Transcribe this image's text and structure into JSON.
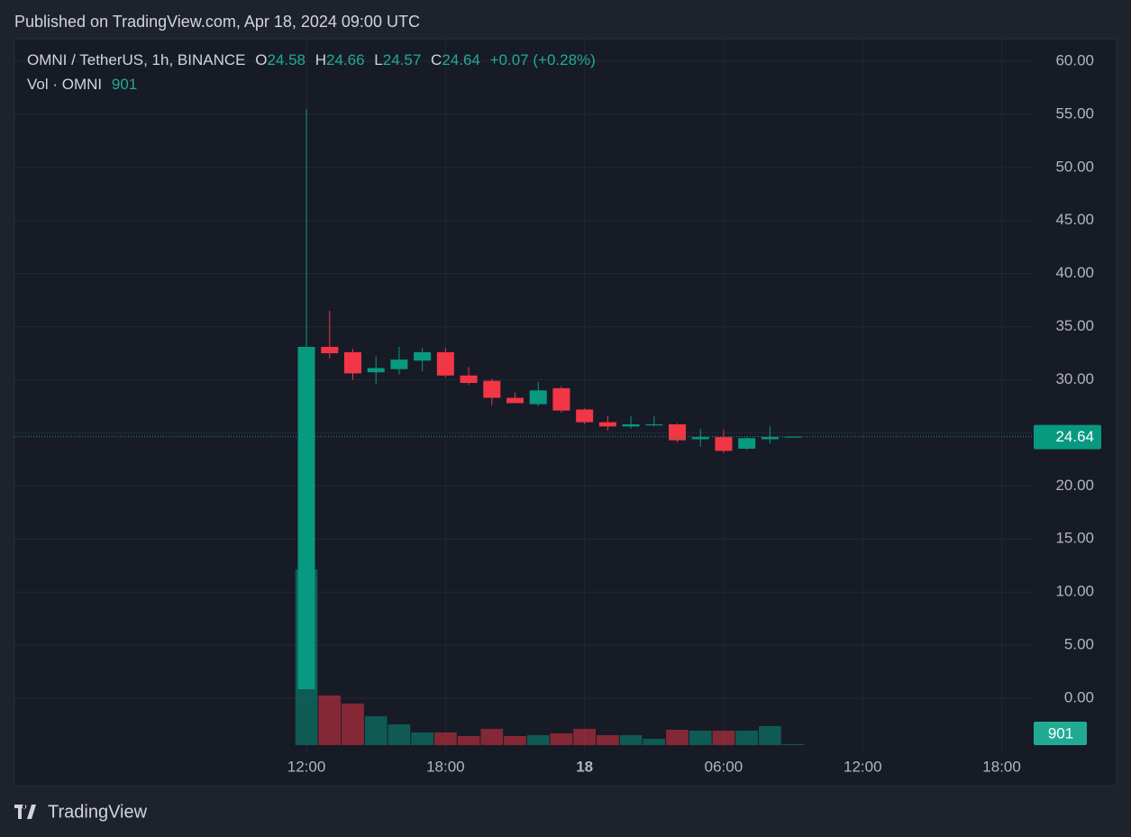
{
  "header": "Published on TradingView.com, Apr 18, 2024 09:00 UTC",
  "footer": "TradingView",
  "chart_data": {
    "type": "candlestick",
    "legend": {
      "symbol": "OMNI / TetherUS, 1h, BINANCE",
      "open_label": "O",
      "high_label": "H",
      "low_label": "L",
      "close_label": "C",
      "change": "+0.07",
      "change_pct": "(+0.28%)",
      "volume_label": "Vol · OMNI"
    },
    "x": [
      12,
      13,
      14,
      15,
      16,
      17,
      18,
      19,
      20,
      21,
      22,
      23,
      24,
      25,
      26,
      27,
      28,
      29,
      30,
      31,
      32,
      33
    ],
    "open": [
      0.85,
      33.1,
      32.6,
      30.7,
      31.0,
      31.8,
      32.6,
      30.4,
      29.9,
      28.3,
      27.7,
      29.2,
      27.2,
      26.0,
      25.6,
      25.7,
      25.8,
      24.4,
      24.6,
      23.5,
      24.4,
      24.58
    ],
    "high": [
      55.5,
      36.5,
      32.9,
      32.2,
      33.1,
      33.0,
      33.0,
      31.2,
      30.1,
      28.8,
      29.8,
      29.4,
      27.3,
      26.6,
      26.6,
      26.6,
      25.9,
      25.4,
      25.3,
      24.6,
      25.6,
      24.66
    ],
    "low": [
      0.8,
      32.0,
      30.0,
      29.6,
      30.5,
      30.8,
      30.2,
      29.5,
      27.6,
      27.8,
      27.5,
      26.9,
      25.8,
      25.2,
      25.4,
      25.6,
      24.1,
      23.7,
      23.1,
      23.4,
      24.0,
      24.57
    ],
    "close": [
      33.1,
      32.5,
      30.6,
      31.1,
      31.9,
      32.6,
      30.4,
      29.7,
      28.3,
      27.8,
      29.0,
      27.1,
      26.0,
      25.6,
      25.8,
      25.8,
      24.3,
      24.6,
      23.3,
      24.5,
      24.6,
      24.64
    ],
    "volume": [
      175000,
      49500,
      41400,
      28800,
      20700,
      12600,
      12600,
      9000,
      16200,
      9000,
      9900,
      11700,
      16200,
      9900,
      9900,
      6300,
      15300,
      14400,
      14400,
      14400,
      18900,
      901
    ],
    "up_color": "#089981",
    "down_color": "#f23645",
    "xlim": [
      -0.6,
      43.3
    ],
    "xticks": [
      {
        "value": 12,
        "label": "12:00"
      },
      {
        "value": 18,
        "label": "18:00"
      },
      {
        "value": 24,
        "label": "18"
      },
      {
        "value": 30,
        "label": "06:00"
      },
      {
        "value": 36,
        "label": "12:00"
      },
      {
        "value": 42,
        "label": "18:00"
      }
    ],
    "ylim": [
      -8.23,
      62.12
    ],
    "yticks": [
      {
        "value": 0,
        "label": "0.00"
      },
      {
        "value": 5,
        "label": "5.00"
      },
      {
        "value": 10,
        "label": "10.00"
      },
      {
        "value": 15,
        "label": "15.00"
      },
      {
        "value": 20,
        "label": "20.00"
      },
      {
        "value": 25,
        "label": "25.00"
      },
      {
        "value": 30,
        "label": "30.00"
      },
      {
        "value": 35,
        "label": "35.00"
      },
      {
        "value": 40,
        "label": "40.00"
      },
      {
        "value": 45,
        "label": "45.00"
      },
      {
        "value": 50,
        "label": "50.00"
      },
      {
        "value": 55,
        "label": "55.00"
      },
      {
        "value": 60,
        "label": "60.00"
      }
    ],
    "grid": true
  }
}
